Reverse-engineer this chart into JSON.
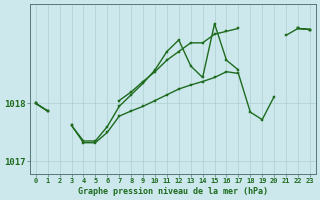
{
  "title": "Graphe pression niveau de la mer (hPa)",
  "bg_color": "#cce8ed",
  "grid_color": "#aacccc",
  "line_color": "#1e6b1e",
  "x_values": [
    0,
    1,
    2,
    3,
    4,
    5,
    6,
    7,
    8,
    9,
    10,
    11,
    12,
    13,
    14,
    15,
    16,
    17,
    18,
    19,
    20,
    21,
    22,
    23
  ],
  "series1": [
    1018.0,
    1017.87,
    null,
    null,
    null,
    null,
    null,
    1018.05,
    1018.2,
    1018.38,
    1018.55,
    1018.75,
    1018.9,
    1019.05,
    1019.05,
    1019.2,
    1019.25,
    1019.3,
    null,
    null,
    null,
    null,
    1019.3,
    1019.28
  ],
  "series2": [
    1018.0,
    1017.87,
    null,
    1017.62,
    1017.35,
    1017.35,
    1017.6,
    1017.95,
    1018.15,
    1018.35,
    1018.58,
    1018.9,
    1019.1,
    1018.65,
    1018.45,
    1019.38,
    1018.75,
    1018.58,
    null,
    null,
    null,
    1019.18,
    1019.3,
    1019.28
  ],
  "series3": [
    1018.0,
    1017.87,
    null,
    1017.62,
    1017.32,
    1017.32,
    1017.5,
    1017.78,
    1017.87,
    1017.95,
    1018.05,
    1018.15,
    1018.25,
    1018.32,
    1018.38,
    1018.45,
    1018.55,
    1018.52,
    1017.85,
    1017.72,
    1018.12,
    null,
    1019.3,
    1019.28
  ],
  "ylim_min": 1016.78,
  "ylim_max": 1019.72,
  "yticks": [
    1017,
    1018
  ],
  "line_width": 1.0,
  "marker_size": 2.0,
  "figwidth": 3.2,
  "figheight": 2.0,
  "dpi": 100
}
